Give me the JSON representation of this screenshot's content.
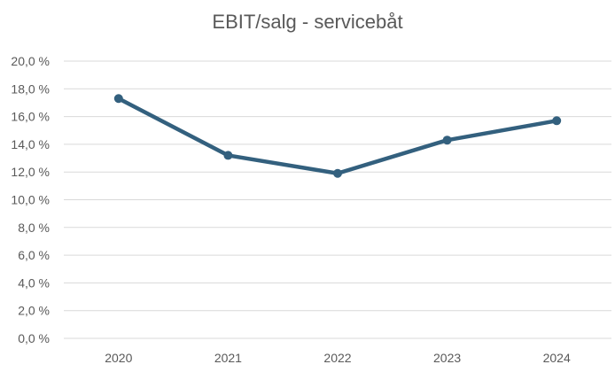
{
  "chart_data": {
    "type": "line",
    "title": "EBIT/salg - servicebåt",
    "categories": [
      "2020",
      "2021",
      "2022",
      "2023",
      "2024"
    ],
    "series": [
      {
        "values": [
          17.3,
          13.2,
          11.9,
          14.3,
          15.7
        ]
      }
    ],
    "ylim": [
      0,
      20
    ],
    "yticks": [
      0,
      2,
      4,
      6,
      8,
      10,
      12,
      14,
      16,
      18,
      20
    ],
    "ytick_labels": [
      "0,0 %",
      "2,0 %",
      "4,0 %",
      "6,0 %",
      "8,0 %",
      "10,0 %",
      "12,0 %",
      "14,0 %",
      "16,0 %",
      "18,0 %",
      "20,0 %"
    ],
    "grid": true,
    "legend": false,
    "colors": {
      "line": "#33607e",
      "grid": "#d9d9d9",
      "text": "#595959"
    }
  }
}
